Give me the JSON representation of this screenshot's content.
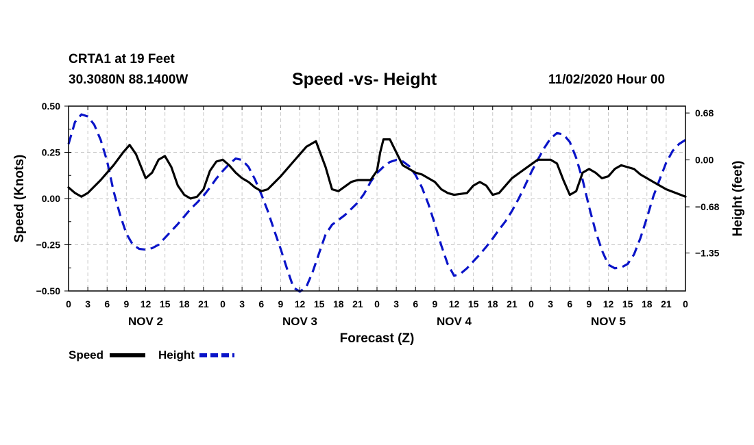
{
  "header": {
    "station": "CRTA1 at 19 Feet",
    "coords": "30.3080N 88.1400W",
    "title": "Speed -vs- Height",
    "datetime": "11/02/2020 Hour 00"
  },
  "chart_data": {
    "type": "line",
    "title": "Speed -vs- Height",
    "xlabel": "Forecast (Z)",
    "ylabel_left": "Speed (Knots)",
    "ylabel_right": "Height (feet)",
    "x_range_hours": [
      0,
      96
    ],
    "x_tick_step_hours": 3,
    "x_tick_labels": [
      "0",
      "3",
      "6",
      "9",
      "12",
      "15",
      "18",
      "21",
      "0",
      "3",
      "6",
      "9",
      "12",
      "15",
      "18",
      "21",
      "0",
      "3",
      "6",
      "9",
      "12",
      "15",
      "18",
      "21",
      "0",
      "3",
      "6",
      "9",
      "12",
      "15",
      "18",
      "21",
      "0"
    ],
    "day_labels": [
      {
        "label": "NOV 2",
        "hour": 12
      },
      {
        "label": "NOV 3",
        "hour": 36
      },
      {
        "label": "NOV 4",
        "hour": 60
      },
      {
        "label": "NOV 5",
        "hour": 84
      }
    ],
    "left_axis": {
      "min": -0.5,
      "max": 0.5,
      "ticks": [
        0.5,
        0.25,
        0.0,
        -0.25,
        -0.5
      ],
      "tick_labels": [
        "0.50",
        "0.25",
        "0.00",
        "−0.25",
        "−0.50"
      ]
    },
    "right_axis": {
      "min": -1.9,
      "max": 0.78,
      "ticks": [
        0.68,
        0.0,
        -0.68,
        -1.35
      ],
      "tick_labels": [
        "0.68",
        "0.00",
        "−0.68",
        "−1.35"
      ]
    },
    "grid": true,
    "legend": {
      "position": "bottom-left",
      "speed_label": "Speed",
      "height_label": "Height"
    },
    "series": [
      {
        "name": "Speed",
        "axis": "left",
        "color": "#000000",
        "style": "solid",
        "points": [
          [
            0,
            0.06
          ],
          [
            1,
            0.03
          ],
          [
            2,
            0.01
          ],
          [
            3,
            0.03
          ],
          [
            5,
            0.1
          ],
          [
            7,
            0.18
          ],
          [
            8.5,
            0.25
          ],
          [
            9.5,
            0.29
          ],
          [
            10.5,
            0.24
          ],
          [
            12,
            0.11
          ],
          [
            13,
            0.14
          ],
          [
            14,
            0.21
          ],
          [
            15,
            0.23
          ],
          [
            16,
            0.17
          ],
          [
            17,
            0.07
          ],
          [
            18,
            0.02
          ],
          [
            19,
            0.0
          ],
          [
            20,
            0.01
          ],
          [
            21,
            0.05
          ],
          [
            22,
            0.15
          ],
          [
            23,
            0.2
          ],
          [
            24,
            0.21
          ],
          [
            25,
            0.18
          ],
          [
            26,
            0.14
          ],
          [
            27,
            0.11
          ],
          [
            28,
            0.09
          ],
          [
            29,
            0.06
          ],
          [
            30,
            0.04
          ],
          [
            31,
            0.05
          ],
          [
            33,
            0.12
          ],
          [
            35,
            0.2
          ],
          [
            37,
            0.28
          ],
          [
            38.5,
            0.31
          ],
          [
            40,
            0.17
          ],
          [
            41,
            0.05
          ],
          [
            42,
            0.04
          ],
          [
            44,
            0.09
          ],
          [
            45,
            0.1
          ],
          [
            47,
            0.1
          ],
          [
            48,
            0.15
          ],
          [
            48.5,
            0.25
          ],
          [
            49,
            0.32
          ],
          [
            50,
            0.32
          ],
          [
            51,
            0.25
          ],
          [
            52,
            0.18
          ],
          [
            54,
            0.14
          ],
          [
            55,
            0.13
          ],
          [
            57,
            0.09
          ],
          [
            58,
            0.05
          ],
          [
            59,
            0.03
          ],
          [
            60,
            0.02
          ],
          [
            62,
            0.03
          ],
          [
            63,
            0.07
          ],
          [
            64,
            0.09
          ],
          [
            65,
            0.07
          ],
          [
            66,
            0.02
          ],
          [
            67,
            0.03
          ],
          [
            69,
            0.11
          ],
          [
            71,
            0.16
          ],
          [
            73,
            0.21
          ],
          [
            74,
            0.21
          ],
          [
            75,
            0.21
          ],
          [
            76,
            0.19
          ],
          [
            77,
            0.1
          ],
          [
            78,
            0.02
          ],
          [
            79,
            0.04
          ],
          [
            80,
            0.14
          ],
          [
            81,
            0.16
          ],
          [
            82,
            0.14
          ],
          [
            83,
            0.11
          ],
          [
            84,
            0.12
          ],
          [
            85,
            0.16
          ],
          [
            86,
            0.18
          ],
          [
            87,
            0.17
          ],
          [
            88,
            0.16
          ],
          [
            89,
            0.13
          ],
          [
            91,
            0.09
          ],
          [
            93,
            0.05
          ],
          [
            96,
            0.01
          ]
        ]
      },
      {
        "name": "Height",
        "axis": "right",
        "color": "#0a14c8",
        "style": "dashed",
        "points": [
          [
            0,
            0.23
          ],
          [
            1,
            0.55
          ],
          [
            2,
            0.66
          ],
          [
            3,
            0.63
          ],
          [
            4,
            0.51
          ],
          [
            5,
            0.29
          ],
          [
            6,
            -0.02
          ],
          [
            7,
            -0.45
          ],
          [
            8,
            -0.79
          ],
          [
            9,
            -1.07
          ],
          [
            10,
            -1.23
          ],
          [
            11,
            -1.29
          ],
          [
            12,
            -1.3
          ],
          [
            13,
            -1.28
          ],
          [
            14,
            -1.23
          ],
          [
            15,
            -1.13
          ],
          [
            16,
            -1.03
          ],
          [
            17,
            -0.93
          ],
          [
            18,
            -0.82
          ],
          [
            19,
            -0.71
          ],
          [
            20,
            -0.62
          ],
          [
            21,
            -0.52
          ],
          [
            22,
            -0.4
          ],
          [
            23,
            -0.27
          ],
          [
            24,
            -0.16
          ],
          [
            25,
            -0.06
          ],
          [
            26,
            0.02
          ],
          [
            27,
            0.0
          ],
          [
            28,
            -0.1
          ],
          [
            29,
            -0.28
          ],
          [
            30,
            -0.5
          ],
          [
            31,
            -0.74
          ],
          [
            32,
            -1.02
          ],
          [
            33,
            -1.29
          ],
          [
            34,
            -1.58
          ],
          [
            35,
            -1.85
          ],
          [
            36,
            -1.91
          ],
          [
            37,
            -1.84
          ],
          [
            38,
            -1.62
          ],
          [
            39,
            -1.35
          ],
          [
            40,
            -1.08
          ],
          [
            41,
            -0.94
          ],
          [
            42,
            -0.87
          ],
          [
            43,
            -0.8
          ],
          [
            44,
            -0.71
          ],
          [
            45,
            -0.62
          ],
          [
            46,
            -0.49
          ],
          [
            47,
            -0.32
          ],
          [
            48,
            -0.19
          ],
          [
            49,
            -0.1
          ],
          [
            50,
            -0.03
          ],
          [
            51,
            0.0
          ],
          [
            52,
            -0.02
          ],
          [
            53,
            -0.09
          ],
          [
            54,
            -0.22
          ],
          [
            55,
            -0.4
          ],
          [
            56,
            -0.64
          ],
          [
            57,
            -0.93
          ],
          [
            58,
            -1.24
          ],
          [
            59,
            -1.51
          ],
          [
            60,
            -1.68
          ],
          [
            61,
            -1.65
          ],
          [
            62,
            -1.57
          ],
          [
            63,
            -1.47
          ],
          [
            64,
            -1.37
          ],
          [
            65,
            -1.26
          ],
          [
            66,
            -1.14
          ],
          [
            67,
            -1.01
          ],
          [
            68,
            -0.89
          ],
          [
            69,
            -0.74
          ],
          [
            70,
            -0.57
          ],
          [
            71,
            -0.38
          ],
          [
            72,
            -0.18
          ],
          [
            73,
            0.0
          ],
          [
            74,
            0.17
          ],
          [
            75,
            0.31
          ],
          [
            76,
            0.39
          ],
          [
            77,
            0.37
          ],
          [
            78,
            0.26
          ],
          [
            79,
            0.03
          ],
          [
            80,
            -0.29
          ],
          [
            81,
            -0.68
          ],
          [
            82,
            -1.03
          ],
          [
            83,
            -1.31
          ],
          [
            84,
            -1.52
          ],
          [
            85,
            -1.57
          ],
          [
            86,
            -1.56
          ],
          [
            87,
            -1.51
          ],
          [
            88,
            -1.37
          ],
          [
            89,
            -1.13
          ],
          [
            90,
            -0.84
          ],
          [
            91,
            -0.53
          ],
          [
            92,
            -0.28
          ],
          [
            93,
            -0.04
          ],
          [
            94,
            0.13
          ],
          [
            95,
            0.23
          ],
          [
            96,
            0.29
          ]
        ]
      }
    ]
  }
}
